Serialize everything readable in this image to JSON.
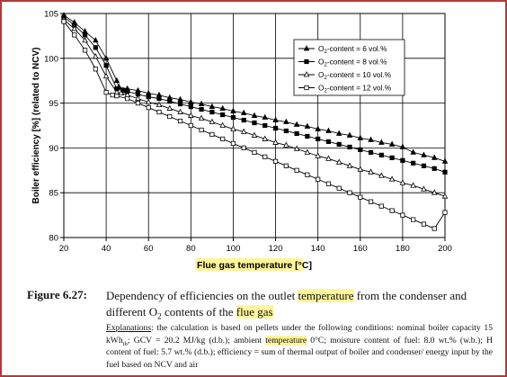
{
  "chart_data": {
    "type": "line",
    "xlabel": "Flue gas temperature [°C]",
    "ylabel": "Boiler efficiency [%] (related to NCV)",
    "xlim": [
      20,
      200
    ],
    "ylim": [
      80,
      105
    ],
    "xticks": [
      20,
      40,
      60,
      80,
      100,
      120,
      140,
      160,
      180,
      200
    ],
    "yticks": [
      80,
      85,
      90,
      95,
      100,
      105
    ],
    "grid": "vertical",
    "legend_position": "top-right",
    "series": [
      {
        "name_prefix": "O",
        "name_sub": "2",
        "name_suffix": "-content = 6 vol.%",
        "marker": "triangle-filled",
        "x": [
          20,
          25,
          30,
          35,
          40,
          45,
          46,
          50,
          55,
          60,
          65,
          70,
          75,
          80,
          85,
          90,
          95,
          100,
          105,
          110,
          115,
          120,
          125,
          130,
          135,
          140,
          145,
          150,
          155,
          160,
          165,
          170,
          175,
          180,
          185,
          190,
          195,
          200
        ],
        "y": [
          104.8,
          104.0,
          103.0,
          102.0,
          100.0,
          97.5,
          96.8,
          96.6,
          96.4,
          96.1,
          95.9,
          95.6,
          95.4,
          95.1,
          94.9,
          94.6,
          94.4,
          94.1,
          93.9,
          93.6,
          93.4,
          93.1,
          92.9,
          92.6,
          92.4,
          92.1,
          91.9,
          91.6,
          91.4,
          91.1,
          90.9,
          90.6,
          90.4,
          90.1,
          89.5,
          89.2,
          88.9,
          88.5
        ]
      },
      {
        "name_prefix": "O",
        "name_sub": "2",
        "name_suffix": "-content = 8 vol.%",
        "marker": "square-filled",
        "x": [
          20,
          25,
          30,
          35,
          40,
          45,
          48,
          50,
          55,
          60,
          65,
          70,
          75,
          80,
          85,
          90,
          95,
          100,
          105,
          110,
          115,
          120,
          125,
          130,
          135,
          140,
          145,
          150,
          155,
          160,
          165,
          170,
          175,
          180,
          185,
          190,
          195,
          200
        ],
        "y": [
          104.6,
          103.7,
          102.6,
          101.2,
          99.2,
          96.6,
          96.4,
          96.3,
          96.0,
          95.7,
          95.5,
          95.2,
          94.9,
          94.6,
          94.3,
          94.0,
          93.7,
          93.4,
          93.1,
          92.8,
          92.5,
          92.2,
          91.9,
          91.6,
          91.3,
          91.0,
          90.7,
          90.4,
          90.1,
          89.8,
          89.5,
          89.2,
          88.9,
          88.6,
          88.3,
          88.0,
          87.7,
          87.3
        ]
      },
      {
        "name_prefix": "O",
        "name_sub": "2",
        "name_suffix": "-content = 10 vol.%",
        "marker": "triangle-open",
        "x": [
          20,
          25,
          30,
          35,
          40,
          45,
          47,
          50,
          55,
          60,
          65,
          70,
          75,
          80,
          85,
          90,
          95,
          100,
          105,
          110,
          115,
          120,
          125,
          130,
          135,
          140,
          145,
          150,
          155,
          160,
          165,
          170,
          175,
          180,
          185,
          190,
          195,
          200
        ],
        "y": [
          104.3,
          103.3,
          102.0,
          100.2,
          98.0,
          96.2,
          96.1,
          95.9,
          95.5,
          95.1,
          94.8,
          94.4,
          94.0,
          93.6,
          93.3,
          92.9,
          92.5,
          92.1,
          91.8,
          91.4,
          91.0,
          90.6,
          90.3,
          89.9,
          89.5,
          89.1,
          88.8,
          88.4,
          88.0,
          87.6,
          87.3,
          86.9,
          86.5,
          86.1,
          85.8,
          85.4,
          85.0,
          84.6
        ]
      },
      {
        "name_prefix": "O",
        "name_sub": "2",
        "name_suffix": "-content = 12 vol.%",
        "marker": "square-open",
        "x": [
          20,
          25,
          30,
          35,
          40,
          43,
          45,
          50,
          55,
          60,
          65,
          70,
          75,
          80,
          85,
          90,
          95,
          100,
          105,
          110,
          115,
          120,
          125,
          130,
          135,
          140,
          145,
          150,
          155,
          160,
          165,
          170,
          175,
          180,
          185,
          190,
          195,
          200
        ],
        "y": [
          104.1,
          102.6,
          100.9,
          98.8,
          96.2,
          95.9,
          95.8,
          95.5,
          95.0,
          94.5,
          94.0,
          93.5,
          93.0,
          92.5,
          92.0,
          91.5,
          91.0,
          90.5,
          90.0,
          89.5,
          89.0,
          88.5,
          88.0,
          87.5,
          87.0,
          86.5,
          86.0,
          85.5,
          85.0,
          84.5,
          84.0,
          83.5,
          83.0,
          82.5,
          82.0,
          81.5,
          81.0,
          82.8
        ]
      }
    ]
  },
  "caption": {
    "figure_label": "Figure 6.27:",
    "title_part1": "Dependency of efficiencies on the outlet ",
    "title_highlight1": "temperature",
    "title_part2": " from the condenser and different O",
    "title_sub": "2",
    "title_part3": " contents of the ",
    "title_highlight2": "flue gas",
    "explanations_label": "Explanations",
    "explanations_part1": ": the calculation is based on pellets under the following conditions: nominal boiler capacity 15 kWh",
    "explanations_sub": "th",
    "explanations_part2": "; GCV = 20.2 MJ/kg (d.b.); ambient ",
    "explanations_highlight": "temperature",
    "explanations_part3": " 0°C; moisture content of fuel: 8.0 wt.% (w.b.); H content of fuel: 5.7 wt.% (d.b.); efficiency = sum of thermal output of boiler and condenser/ energy input by the fuel based on NCV and air"
  },
  "colors": {
    "frame": "#b23a3a",
    "highlight": "#fff59a",
    "series": "#000000"
  }
}
